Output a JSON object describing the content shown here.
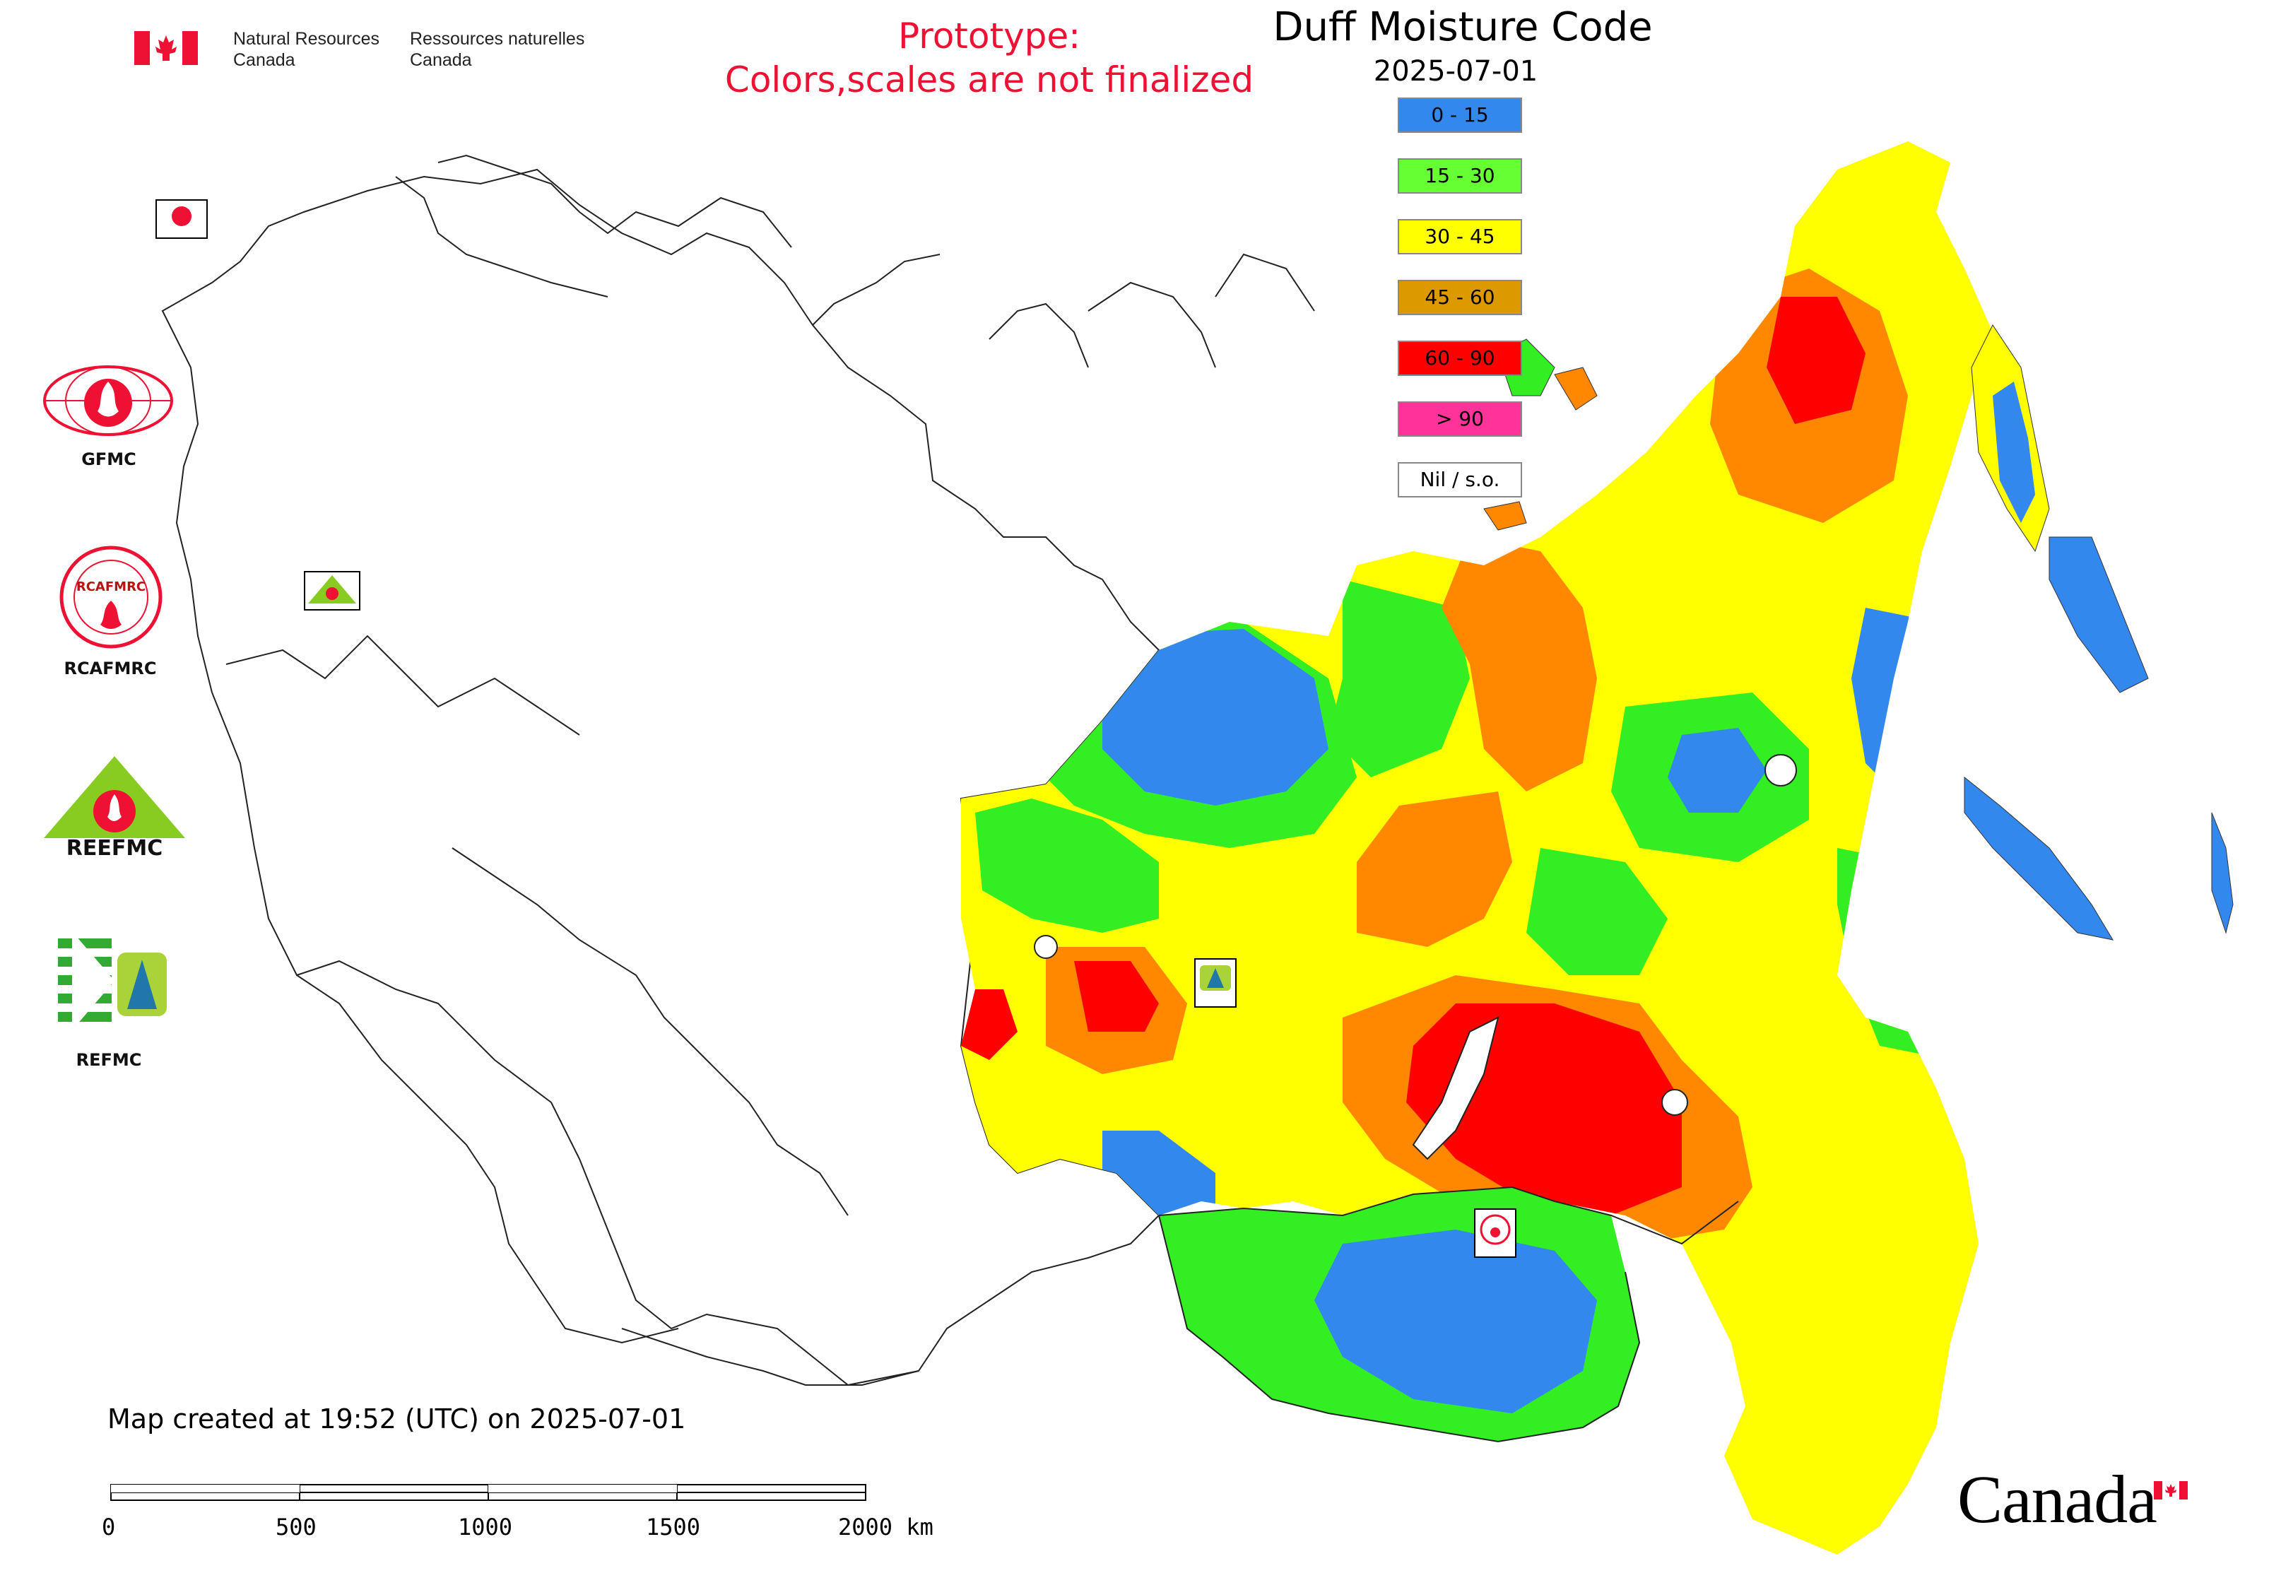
{
  "header": {
    "org_en_line1": "Natural Resources",
    "org_en_line2": "Canada",
    "org_fr_line1": "Ressources naturelles",
    "org_fr_line2": "Canada",
    "prototype_line1": "Prototype:",
    "prototype_line2": "Colors,scales are not finalized"
  },
  "map": {
    "title": "Duff Moisture Code",
    "date": "2025-07-01",
    "created_note": "Map created at 19:52 (UTC) on 2025-07-01"
  },
  "legend": {
    "items": [
      {
        "label": "0 - 15",
        "color": "#3388ee"
      },
      {
        "label": "15 - 30",
        "color": "#66ff33"
      },
      {
        "label": "30 - 45",
        "color": "#ffff00"
      },
      {
        "label": "45 - 60",
        "color": "#dd9900"
      },
      {
        "label": "60 - 90",
        "color": "#ff0000"
      },
      {
        "label": "> 90",
        "color": "#ff3399"
      },
      {
        "label": "Nil / s.o.",
        "color": "#ffffff"
      }
    ]
  },
  "logos": {
    "gfmc": "GFMC",
    "rcafmrc": "RCAFMRC",
    "reefmc": "REFMC",
    "reefmc_logo_text": "REEFMC"
  },
  "scale_bar": {
    "labels": [
      "0",
      "500",
      "1000",
      "1500",
      "2000 km"
    ]
  },
  "footer": {
    "wordmark": "Canada"
  },
  "palette": {
    "blue": "#3388ee",
    "green": "#33ee22",
    "yellow": "#ffff00",
    "orange": "#ff8800",
    "red": "#ff0000",
    "brand_red": "#ee1133"
  }
}
